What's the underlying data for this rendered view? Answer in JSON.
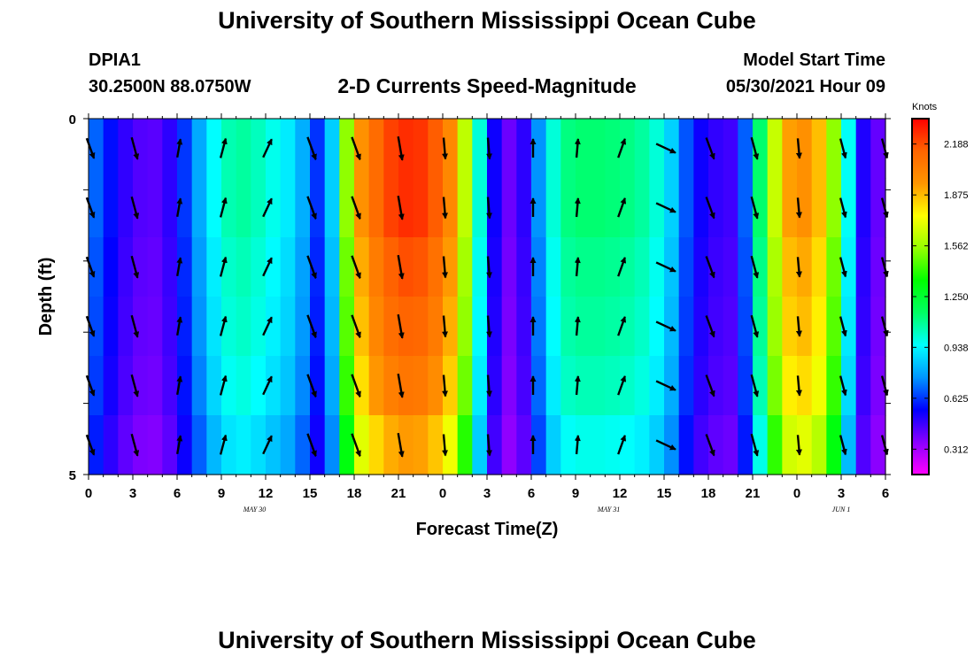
{
  "header": {
    "title": "University of Southern Mississippi Ocean Cube",
    "station": "DPIA1",
    "coordinates": "30.2500N  88.0750W",
    "subtitle": "2-D Currents Speed-Magnitude",
    "model_start_label": "Model Start Time",
    "model_start_value": "05/30/2021 Hour 09"
  },
  "footer": {
    "title": "University of Southern Mississippi Ocean Cube"
  },
  "chart_data": {
    "type": "heatmap",
    "title": "2-D Currents Speed-Magnitude",
    "xlabel": "Forecast Time(Z)",
    "ylabel": "Depth (ft)",
    "ylim": [
      0,
      5
    ],
    "y_ticks": [
      "0",
      "5"
    ],
    "x_tick_labels": [
      "0",
      "3",
      "6",
      "9",
      "12",
      "15",
      "18",
      "21",
      "0",
      "3",
      "6",
      "9",
      "12",
      "15",
      "18",
      "21",
      "0",
      "3",
      "6"
    ],
    "date_labels": [
      {
        "text": "MAY  30",
        "tick": 3.75
      },
      {
        "text": "MAY  31",
        "tick": 11.75
      },
      {
        "text": "JUN  1",
        "tick": 17
      }
    ],
    "colorbar": {
      "unit": "Knots",
      "min": 0.156,
      "max": 2.344,
      "ticks": [
        "2.188",
        "1.875",
        "1.562",
        "1.250",
        "0.938",
        "0.625",
        "0.312"
      ],
      "colors": [
        "#ff00ff",
        "#8a00ff",
        "#0000ff",
        "#0096ff",
        "#00ffff",
        "#00ff64",
        "#00ff00",
        "#96ff00",
        "#ffff00",
        "#ff9600",
        "#ff6400",
        "#ff0000"
      ]
    },
    "hours": [
      0,
      1,
      2,
      3,
      4,
      5,
      6,
      7,
      8,
      9,
      10,
      11,
      12,
      13,
      14,
      15,
      16,
      17,
      18,
      19,
      20,
      21,
      22,
      23,
      24,
      25,
      26,
      27,
      28,
      29,
      30,
      31,
      32,
      33,
      34,
      35,
      36,
      37,
      38,
      39,
      40,
      41,
      42,
      43,
      44,
      45,
      46,
      47,
      48,
      49,
      50,
      51,
      52,
      53,
      54
    ],
    "surface_speed": [
      0.75,
      0.62,
      0.52,
      0.45,
      0.42,
      0.43,
      0.55,
      0.7,
      0.88,
      1.02,
      1.08,
      1.07,
      1.0,
      0.95,
      0.88,
      0.72,
      0.52,
      1.2,
      1.88,
      2.05,
      2.18,
      2.25,
      2.26,
      2.22,
      2.1,
      1.9,
      1.35,
      0.65,
      0.42,
      0.38,
      0.6,
      0.9,
      1.1,
      1.13,
      1.14,
      1.13,
      1.12,
      1.1,
      1.05,
      0.95,
      0.78,
      0.55,
      0.52,
      0.45,
      0.48,
      0.88,
      1.4,
      1.88,
      1.98,
      1.96,
      1.78,
      1.3,
      0.62,
      0.4,
      0.42
    ],
    "depth_attenuation": [
      1.0,
      1.0,
      0.97,
      0.95,
      0.92,
      0.86
    ],
    "arrow_hours": [
      0,
      3,
      6,
      9,
      12,
      15,
      18,
      21,
      24,
      27,
      30,
      33,
      36,
      39,
      42,
      45,
      48,
      51,
      54
    ],
    "arrow_directions_deg": [
      160,
      165,
      10,
      15,
      25,
      160,
      160,
      170,
      175,
      175,
      0,
      5,
      20,
      115,
      160,
      165,
      175,
      165,
      165
    ],
    "arrow_lengths": [
      0.8,
      0.85,
      0.7,
      0.75,
      0.75,
      0.9,
      0.9,
      0.9,
      0.8,
      0.8,
      0.7,
      0.7,
      0.75,
      0.8,
      0.85,
      0.85,
      0.75,
      0.75,
      0.75
    ]
  }
}
